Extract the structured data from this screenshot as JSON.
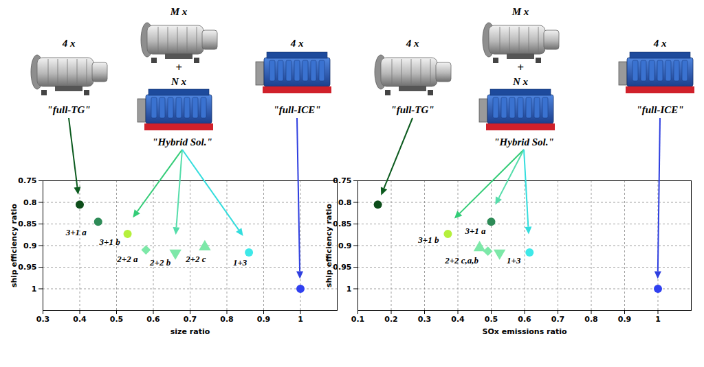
{
  "chart_data": [
    {
      "type": "scatter",
      "x_label": "size ratio",
      "y_label": "ship efficiency ratio",
      "xlim": [
        0.3,
        1.1
      ],
      "ylim": [
        1.05,
        0.75
      ],
      "xticks": [
        0.3,
        0.4,
        0.5,
        0.6,
        0.7,
        0.8,
        0.9,
        1
      ],
      "yticks": [
        0.75,
        0.8,
        0.85,
        0.9,
        0.95,
        1
      ],
      "grid": true,
      "points": [
        {
          "x": 0.4,
          "y": 0.805,
          "label": null,
          "color": "#0d4d1a",
          "marker": "circle"
        },
        {
          "x": 0.45,
          "y": 0.845,
          "label": "3+1 a",
          "color": "#2e8b57",
          "marker": "circle"
        },
        {
          "x": 0.53,
          "y": 0.873,
          "label": "3+1 b",
          "color": "#b5f03c",
          "marker": "circle"
        },
        {
          "x": 0.58,
          "y": 0.91,
          "label": "2+2 a",
          "color": "#7de8a8",
          "marker": "diamond"
        },
        {
          "x": 0.66,
          "y": 0.917,
          "label": "2+2 b",
          "color": "#7de8a8",
          "marker": "triangle-down"
        },
        {
          "x": 0.74,
          "y": 0.903,
          "label": "2+2 c",
          "color": "#7de8a8",
          "marker": "triangle"
        },
        {
          "x": 0.86,
          "y": 0.916,
          "label": "1+3",
          "color": "#3ee8e8",
          "marker": "circle"
        },
        {
          "x": 1,
          "y": 1,
          "label": null,
          "color": "#3040f0",
          "marker": "circle"
        }
      ],
      "annotations": {
        "full_tg": {
          "count": "4 x",
          "name": "\"full-TG\""
        },
        "hybrid": {
          "count_top": "M x",
          "plus": "+",
          "count_bottom": "N x",
          "name": "\"Hybrid Sol.\""
        },
        "full_ice": {
          "count": "4 x",
          "name": "\"full-ICE\""
        }
      }
    },
    {
      "type": "scatter",
      "x_label": "SOx emissions ratio",
      "y_label": "ship efficiency ratio",
      "xlim": [
        0.1,
        1.1
      ],
      "ylim": [
        1.05,
        0.75
      ],
      "xticks": [
        0.1,
        0.2,
        0.3,
        0.4,
        0.5,
        0.6,
        0.7,
        0.8,
        0.9,
        1
      ],
      "yticks": [
        0.75,
        0.8,
        0.85,
        0.9,
        0.95,
        1
      ],
      "grid": true,
      "points": [
        {
          "x": 0.16,
          "y": 0.805,
          "label": null,
          "color": "#0d4d1a",
          "marker": "circle"
        },
        {
          "x": 0.5,
          "y": 0.845,
          "label": "3+1 a",
          "color": "#2e8b57",
          "marker": "circle"
        },
        {
          "x": 0.37,
          "y": 0.873,
          "label": "3+1 b",
          "color": "#b5f03c",
          "marker": "circle"
        },
        {
          "x": 0.49,
          "y": 0.913,
          "label": "2+2 c,a,b",
          "color": "#7de8a8",
          "marker": "diamond"
        },
        {
          "x": 0.525,
          "y": 0.917,
          "label": null,
          "color": "#7de8a8",
          "marker": "triangle-down"
        },
        {
          "x": 0.465,
          "y": 0.905,
          "label": null,
          "color": "#7de8a8",
          "marker": "triangle"
        },
        {
          "x": 0.615,
          "y": 0.916,
          "label": "1+3",
          "color": "#3ee8e8",
          "marker": "circle"
        },
        {
          "x": 1,
          "y": 1,
          "label": null,
          "color": "#3040f0",
          "marker": "circle"
        }
      ],
      "annotations": {
        "full_tg": {
          "count": "4 x",
          "name": "\"full-TG\""
        },
        "hybrid": {
          "count_top": "M x",
          "plus": "+",
          "count_bottom": "N x",
          "name": "\"Hybrid Sol.\""
        },
        "full_ice": {
          "count": "4 x",
          "name": "\"full-ICE\""
        }
      }
    }
  ]
}
